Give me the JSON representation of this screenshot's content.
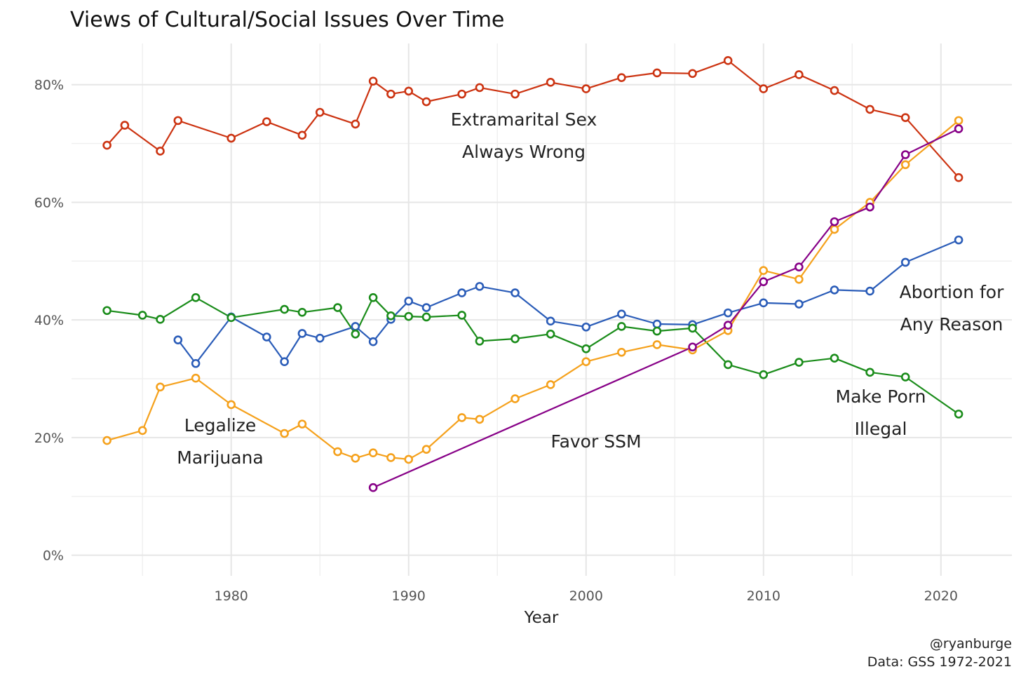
{
  "chart_data": {
    "type": "line",
    "title": "Views of Cultural/Social Issues Over Time",
    "xlabel": "Year",
    "ylabel": "",
    "xlim": [
      1971,
      2024
    ],
    "ylim": [
      -0.035,
      0.87
    ],
    "x_ticks": [
      1980,
      1990,
      2000,
      2010,
      2020
    ],
    "x_tick_labels": [
      "1980",
      "1990",
      "2000",
      "2010",
      "2020"
    ],
    "y_ticks": [
      0,
      0.2,
      0.4,
      0.6,
      0.8
    ],
    "y_tick_labels": [
      "0%",
      "20%",
      "40%",
      "60%",
      "80%"
    ],
    "grid": true,
    "legend": "none",
    "series": [
      {
        "name": "Extramarital Sex Always Wrong",
        "color": "#cc3311",
        "x": [
          1973,
          1974,
          1976,
          1977,
          1980,
          1982,
          1984,
          1985,
          1987,
          1988,
          1989,
          1990,
          1991,
          1993,
          1994,
          1996,
          1998,
          2000,
          2002,
          2004,
          2006,
          2008,
          2010,
          2012,
          2014,
          2016,
          2018,
          2021
        ],
        "y": [
          0.697,
          0.731,
          0.687,
          0.739,
          0.709,
          0.737,
          0.714,
          0.753,
          0.733,
          0.806,
          0.784,
          0.789,
          0.771,
          0.784,
          0.795,
          0.784,
          0.804,
          0.793,
          0.812,
          0.82,
          0.819,
          0.841,
          0.793,
          0.817,
          0.79,
          0.758,
          0.744,
          0.642
        ]
      },
      {
        "name": "Abortion for Any Reason",
        "color": "#2a5cb8",
        "x": [
          1977,
          1978,
          1980,
          1982,
          1983,
          1984,
          1985,
          1987,
          1988,
          1989,
          1990,
          1991,
          1993,
          1994,
          1996,
          1998,
          2000,
          2002,
          2004,
          2006,
          2008,
          2010,
          2012,
          2014,
          2016,
          2018,
          2021
        ],
        "y": [
          0.366,
          0.326,
          0.405,
          0.371,
          0.329,
          0.377,
          0.369,
          0.389,
          0.363,
          0.401,
          0.432,
          0.421,
          0.446,
          0.457,
          0.446,
          0.398,
          0.388,
          0.41,
          0.393,
          0.392,
          0.412,
          0.429,
          0.427,
          0.451,
          0.449,
          0.498,
          0.536
        ]
      },
      {
        "name": "Make Porn Illegal",
        "color": "#1a8c1a",
        "x": [
          1973,
          1975,
          1976,
          1978,
          1980,
          1983,
          1984,
          1986,
          1987,
          1988,
          1989,
          1990,
          1991,
          1993,
          1994,
          1996,
          1998,
          2000,
          2002,
          2004,
          2006,
          2008,
          2010,
          2012,
          2014,
          2016,
          2018,
          2021
        ],
        "y": [
          0.416,
          0.408,
          0.401,
          0.438,
          0.404,
          0.418,
          0.413,
          0.421,
          0.376,
          0.438,
          0.407,
          0.406,
          0.405,
          0.408,
          0.364,
          0.368,
          0.376,
          0.351,
          0.389,
          0.381,
          0.386,
          0.324,
          0.307,
          0.328,
          0.335,
          0.311,
          0.303,
          0.24
        ]
      },
      {
        "name": "Legalize Marijuana",
        "color": "#f5a11c",
        "x": [
          1973,
          1975,
          1976,
          1978,
          1980,
          1983,
          1984,
          1986,
          1987,
          1988,
          1989,
          1990,
          1991,
          1993,
          1994,
          1996,
          1998,
          2000,
          2002,
          2004,
          2006,
          2008,
          2010,
          2012,
          2014,
          2016,
          2018,
          2021
        ],
        "y": [
          0.195,
          0.212,
          0.286,
          0.301,
          0.256,
          0.207,
          0.223,
          0.176,
          0.165,
          0.174,
          0.166,
          0.163,
          0.18,
          0.234,
          0.231,
          0.266,
          0.29,
          0.329,
          0.345,
          0.358,
          0.349,
          0.382,
          0.484,
          0.469,
          0.554,
          0.6,
          0.664,
          0.739
        ]
      },
      {
        "name": "Favor SSM",
        "color": "#870087",
        "x": [
          1988,
          2006,
          2008,
          2010,
          2012,
          2014,
          2016,
          2018,
          2021
        ],
        "y": [
          0.115,
          0.354,
          0.391,
          0.465,
          0.49,
          0.567,
          0.592,
          0.681,
          0.725
        ]
      }
    ],
    "annotations": [
      {
        "lines": [
          "Extramarital Sex",
          "Always Wrong"
        ]
      },
      {
        "lines": [
          "Legalize",
          "Marijuana"
        ]
      },
      {
        "lines": [
          "Favor SSM"
        ]
      },
      {
        "lines": [
          "Abortion for",
          "Any Reason"
        ]
      },
      {
        "lines": [
          "Make Porn",
          "Illegal"
        ]
      }
    ],
    "caption": [
      "@ryanburge",
      "Data: GSS 1972-2021"
    ]
  }
}
